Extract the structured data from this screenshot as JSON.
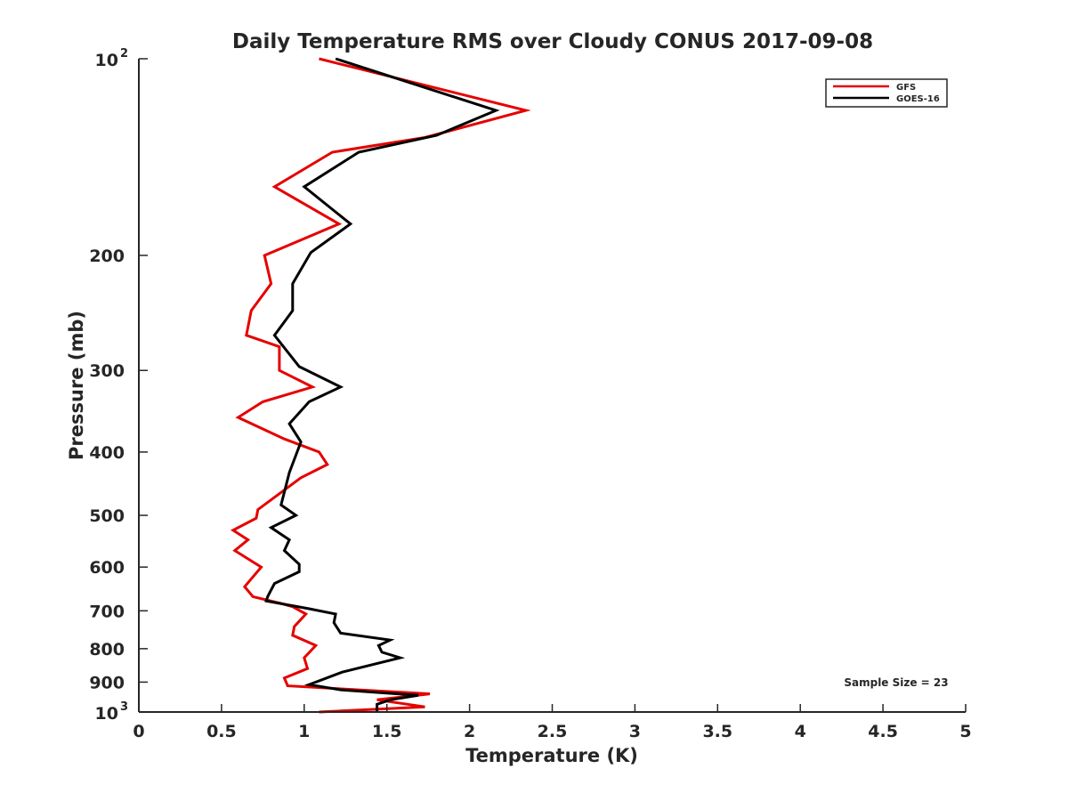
{
  "chart_data": {
    "type": "line",
    "title": "Daily Temperature RMS over Cloudy CONUS 2017-09-08",
    "xlabel": "Temperature (K)",
    "ylabel": "Pressure (mb)",
    "xlim": [
      0,
      5
    ],
    "ylim": [
      100,
      1000
    ],
    "y_scale": "log",
    "y_reversed": true,
    "grid": false,
    "legend_position": "top-right",
    "x_ticks": [
      {
        "value": 0,
        "label": "0"
      },
      {
        "value": 0.5,
        "label": "0.5"
      },
      {
        "value": 1,
        "label": "1"
      },
      {
        "value": 1.5,
        "label": "1.5"
      },
      {
        "value": 2,
        "label": "2"
      },
      {
        "value": 2.5,
        "label": "2.5"
      },
      {
        "value": 3,
        "label": "3"
      },
      {
        "value": 3.5,
        "label": "3.5"
      },
      {
        "value": 4,
        "label": "4"
      },
      {
        "value": 4.5,
        "label": "4.5"
      },
      {
        "value": 5,
        "label": "5"
      }
    ],
    "y_ticks": [
      {
        "value": 100,
        "label": "10",
        "exponent": "2"
      },
      {
        "value": 200,
        "label": "200"
      },
      {
        "value": 300,
        "label": "300"
      },
      {
        "value": 400,
        "label": "400"
      },
      {
        "value": 500,
        "label": "500"
      },
      {
        "value": 600,
        "label": "600"
      },
      {
        "value": 700,
        "label": "700"
      },
      {
        "value": 800,
        "label": "800"
      },
      {
        "value": 900,
        "label": "900"
      },
      {
        "value": 1000,
        "label": "10",
        "exponent": "3"
      }
    ],
    "series": [
      {
        "name": "GFS",
        "color": "#e60000",
        "points": [
          {
            "x": 1.09,
            "p": 100
          },
          {
            "x": 2.34,
            "p": 120
          },
          {
            "x": 1.73,
            "p": 132
          },
          {
            "x": 1.17,
            "p": 139
          },
          {
            "x": 0.82,
            "p": 157
          },
          {
            "x": 1.21,
            "p": 179
          },
          {
            "x": 0.76,
            "p": 200
          },
          {
            "x": 0.8,
            "p": 221
          },
          {
            "x": 0.68,
            "p": 243
          },
          {
            "x": 0.65,
            "p": 265
          },
          {
            "x": 0.85,
            "p": 276
          },
          {
            "x": 0.85,
            "p": 300
          },
          {
            "x": 1.05,
            "p": 318
          },
          {
            "x": 0.75,
            "p": 335
          },
          {
            "x": 0.6,
            "p": 354
          },
          {
            "x": 0.88,
            "p": 382
          },
          {
            "x": 1.09,
            "p": 400
          },
          {
            "x": 1.14,
            "p": 418
          },
          {
            "x": 0.98,
            "p": 438
          },
          {
            "x": 0.72,
            "p": 490
          },
          {
            "x": 0.71,
            "p": 505
          },
          {
            "x": 0.57,
            "p": 527
          },
          {
            "x": 0.66,
            "p": 545
          },
          {
            "x": 0.58,
            "p": 566
          },
          {
            "x": 0.74,
            "p": 600
          },
          {
            "x": 0.64,
            "p": 643
          },
          {
            "x": 0.69,
            "p": 666
          },
          {
            "x": 0.87,
            "p": 683
          },
          {
            "x": 0.93,
            "p": 690
          },
          {
            "x": 1.01,
            "p": 708
          },
          {
            "x": 0.94,
            "p": 740
          },
          {
            "x": 0.93,
            "p": 763
          },
          {
            "x": 1.07,
            "p": 791
          },
          {
            "x": 1.0,
            "p": 826
          },
          {
            "x": 1.02,
            "p": 858
          },
          {
            "x": 0.88,
            "p": 887
          },
          {
            "x": 0.9,
            "p": 912
          },
          {
            "x": 1.76,
            "p": 938
          },
          {
            "x": 1.44,
            "p": 958
          },
          {
            "x": 1.73,
            "p": 982
          },
          {
            "x": 1.09,
            "p": 1000
          }
        ]
      },
      {
        "name": "GOES-16",
        "color": "#000000",
        "points": [
          {
            "x": 1.19,
            "p": 100
          },
          {
            "x": 2.16,
            "p": 120
          },
          {
            "x": 1.8,
            "p": 131
          },
          {
            "x": 1.33,
            "p": 139
          },
          {
            "x": 1.0,
            "p": 157
          },
          {
            "x": 1.28,
            "p": 179
          },
          {
            "x": 1.04,
            "p": 198
          },
          {
            "x": 0.93,
            "p": 221
          },
          {
            "x": 0.93,
            "p": 243
          },
          {
            "x": 0.82,
            "p": 265
          },
          {
            "x": 0.97,
            "p": 296
          },
          {
            "x": 1.22,
            "p": 318
          },
          {
            "x": 1.03,
            "p": 335
          },
          {
            "x": 0.91,
            "p": 362
          },
          {
            "x": 0.98,
            "p": 386
          },
          {
            "x": 0.91,
            "p": 430
          },
          {
            "x": 0.86,
            "p": 482
          },
          {
            "x": 0.95,
            "p": 500
          },
          {
            "x": 0.8,
            "p": 522
          },
          {
            "x": 0.91,
            "p": 545
          },
          {
            "x": 0.88,
            "p": 566
          },
          {
            "x": 0.97,
            "p": 594
          },
          {
            "x": 0.97,
            "p": 610
          },
          {
            "x": 0.82,
            "p": 636
          },
          {
            "x": 0.78,
            "p": 665
          },
          {
            "x": 0.77,
            "p": 676
          },
          {
            "x": 1.03,
            "p": 695
          },
          {
            "x": 1.19,
            "p": 708
          },
          {
            "x": 1.18,
            "p": 730
          },
          {
            "x": 1.22,
            "p": 757
          },
          {
            "x": 1.52,
            "p": 776
          },
          {
            "x": 1.45,
            "p": 791
          },
          {
            "x": 1.47,
            "p": 810
          },
          {
            "x": 1.58,
            "p": 826
          },
          {
            "x": 1.23,
            "p": 869
          },
          {
            "x": 1.03,
            "p": 908
          },
          {
            "x": 1.22,
            "p": 925
          },
          {
            "x": 1.69,
            "p": 943
          },
          {
            "x": 1.52,
            "p": 958
          },
          {
            "x": 1.44,
            "p": 973
          },
          {
            "x": 1.44,
            "p": 1000
          }
        ]
      }
    ],
    "annotation": "Sample Size = 23"
  }
}
